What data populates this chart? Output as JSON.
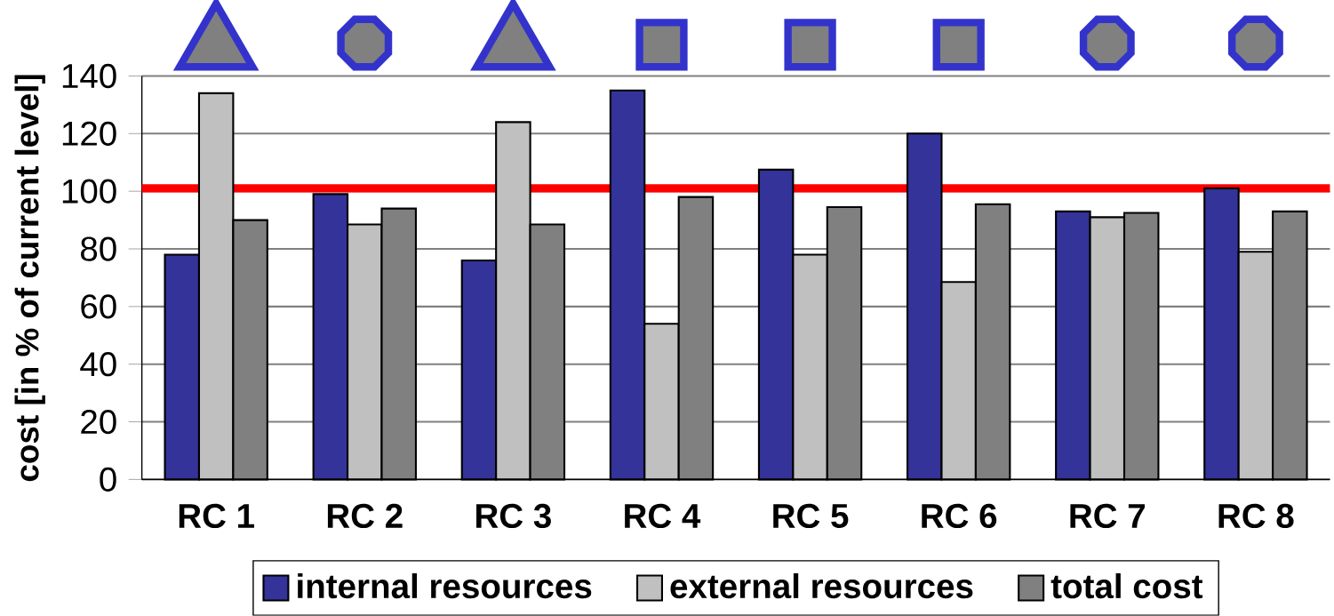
{
  "chart_data": {
    "type": "bar",
    "ylabel": "cost [in % of current level]",
    "categories": [
      "RC 1",
      "RC 2",
      "RC 3",
      "RC 4",
      "RC 5",
      "RC 6",
      "RC 7",
      "RC 8"
    ],
    "series": [
      {
        "name": "internal resources",
        "color": "#333399",
        "values": [
          78,
          99,
          76,
          135,
          107.5,
          120,
          93,
          101
        ]
      },
      {
        "name": "external resources",
        "color": "#c0c0c0",
        "values": [
          134,
          88.5,
          124,
          54,
          78,
          68.5,
          91,
          79
        ]
      },
      {
        "name": "total cost",
        "color": "#808080",
        "values": [
          90,
          94,
          88.5,
          98,
          94.5,
          95.5,
          92.5,
          93
        ]
      }
    ],
    "ylim": [
      0,
      140
    ],
    "yticks": [
      0,
      20,
      40,
      60,
      80,
      100,
      120,
      140
    ],
    "grid": "y",
    "legend": "bottom",
    "ref_lines": [
      {
        "axis": "y",
        "value": 101,
        "color": "#ff0000"
      }
    ]
  }
}
